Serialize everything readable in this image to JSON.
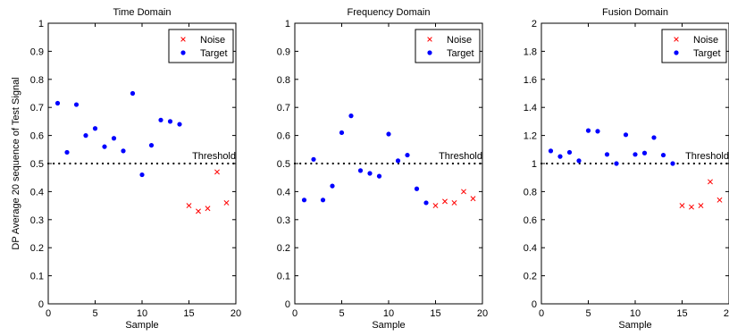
{
  "figure": {
    "ylabel": "DP Average 20 sequence of Test Signal"
  },
  "colors": {
    "noise": "#ff0000",
    "target": "#0000ff",
    "axis": "#000000"
  },
  "chart_data": [
    {
      "type": "scatter",
      "title": "Time Domain",
      "xlabel": "Sample",
      "ylabel": "DP Average 20 sequence of Test Signal",
      "xlim": [
        0,
        20
      ],
      "ylim": [
        0,
        1
      ],
      "xticks": [
        0,
        5,
        10,
        15,
        20
      ],
      "yticks": [
        0,
        0.1,
        0.2,
        0.3,
        0.4,
        0.5,
        0.6,
        0.7,
        0.8,
        0.9,
        1
      ],
      "grid": false,
      "legend": "top-right",
      "threshold": {
        "value": 0.5,
        "label": "Threshold"
      },
      "series": [
        {
          "name": "Noise",
          "marker": "x",
          "color": "#ff0000",
          "x": [
            15,
            16,
            17,
            18,
            19
          ],
          "y": [
            0.35,
            0.33,
            0.34,
            0.47,
            0.36
          ]
        },
        {
          "name": "Target",
          "marker": "dot",
          "color": "#0000ff",
          "x": [
            1,
            2,
            3,
            4,
            5,
            6,
            7,
            8,
            9,
            10,
            11,
            12,
            13,
            14
          ],
          "y": [
            0.715,
            0.54,
            0.71,
            0.6,
            0.625,
            0.56,
            0.59,
            0.545,
            0.75,
            0.46,
            0.565,
            0.655,
            0.65,
            0.64
          ]
        }
      ]
    },
    {
      "type": "scatter",
      "title": "Frequency Domain",
      "xlabel": "Sample",
      "ylabel": "",
      "xlim": [
        0,
        20
      ],
      "ylim": [
        0,
        1
      ],
      "xticks": [
        0,
        5,
        10,
        15,
        20
      ],
      "yticks": [
        0,
        0.1,
        0.2,
        0.3,
        0.4,
        0.5,
        0.6,
        0.7,
        0.8,
        0.9,
        1
      ],
      "grid": false,
      "legend": "top-right",
      "threshold": {
        "value": 0.5,
        "label": "Threshold"
      },
      "series": [
        {
          "name": "Noise",
          "marker": "x",
          "color": "#ff0000",
          "x": [
            15,
            16,
            17,
            18,
            19
          ],
          "y": [
            0.35,
            0.365,
            0.36,
            0.4,
            0.375
          ]
        },
        {
          "name": "Target",
          "marker": "dot",
          "color": "#0000ff",
          "x": [
            1,
            2,
            3,
            4,
            5,
            6,
            7,
            8,
            9,
            10,
            11,
            12,
            13,
            14
          ],
          "y": [
            0.37,
            0.515,
            0.37,
            0.42,
            0.61,
            0.67,
            0.475,
            0.465,
            0.455,
            0.605,
            0.51,
            0.53,
            0.41,
            0.36
          ]
        }
      ]
    },
    {
      "type": "scatter",
      "title": "Fusion Domain",
      "xlabel": "Sample",
      "ylabel": "",
      "xlim": [
        0,
        20
      ],
      "ylim": [
        0,
        2
      ],
      "xticks": [
        0,
        5,
        10,
        15,
        20
      ],
      "yticks": [
        0,
        0.2,
        0.4,
        0.6,
        0.8,
        1,
        1.2,
        1.4,
        1.6,
        1.8,
        2
      ],
      "grid": false,
      "legend": "top-right",
      "threshold": {
        "value": 1,
        "label": "Threshold"
      },
      "series": [
        {
          "name": "Noise",
          "marker": "x",
          "color": "#ff0000",
          "x": [
            15,
            16,
            17,
            18,
            19
          ],
          "y": [
            0.7,
            0.69,
            0.7,
            0.87,
            0.74
          ]
        },
        {
          "name": "Target",
          "marker": "dot",
          "color": "#0000ff",
          "x": [
            1,
            2,
            3,
            4,
            5,
            6,
            7,
            8,
            9,
            10,
            11,
            12,
            13,
            14
          ],
          "y": [
            1.09,
            1.05,
            1.08,
            1.02,
            1.235,
            1.23,
            1.065,
            1.0,
            1.205,
            1.065,
            1.075,
            1.185,
            1.06,
            1.0
          ]
        }
      ]
    }
  ]
}
